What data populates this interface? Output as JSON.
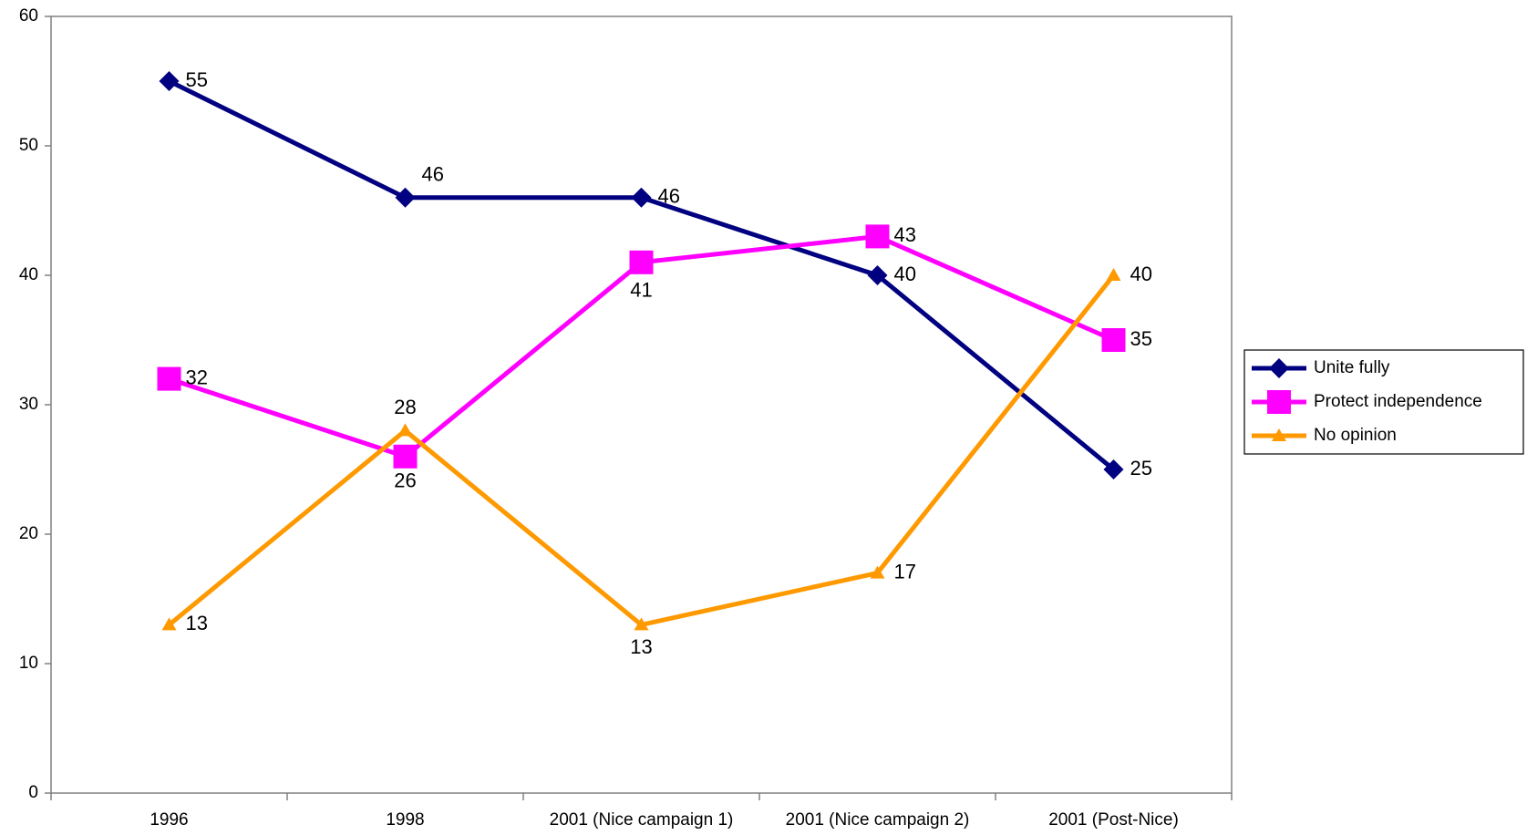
{
  "chart_data": {
    "type": "line",
    "categories": [
      "1996",
      "1998",
      "2001 (Nice campaign 1)",
      "2001 (Nice campaign 2)",
      "2001 (Post-Nice)"
    ],
    "series": [
      {
        "name": "Unite fully",
        "color": "#000080",
        "marker": "diamond",
        "values": [
          55,
          46,
          46,
          40,
          25
        ]
      },
      {
        "name": "Protect independence",
        "color": "#ff00ff",
        "marker": "square",
        "values": [
          32,
          26,
          41,
          43,
          35
        ]
      },
      {
        "name": "No opinion",
        "color": "#ff9900",
        "marker": "triangle",
        "values": [
          13,
          28,
          13,
          17,
          40
        ]
      }
    ],
    "ylim": [
      0,
      60
    ],
    "yticks": [
      0,
      10,
      20,
      30,
      40,
      50,
      60
    ],
    "grid": false,
    "legend": "right"
  }
}
